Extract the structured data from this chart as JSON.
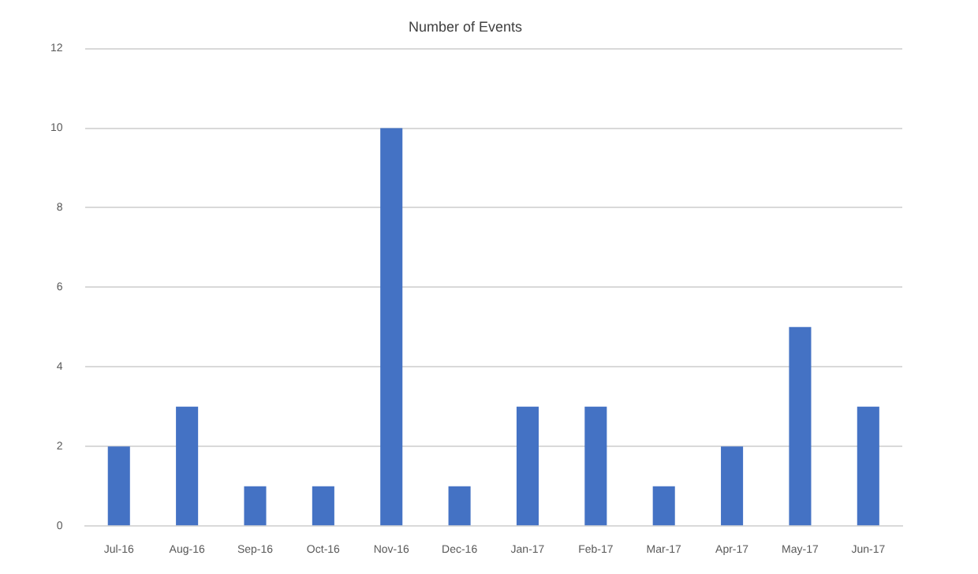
{
  "chart_data": {
    "type": "bar",
    "title": "Number of Events",
    "categories": [
      "Jul-16",
      "Aug-16",
      "Sep-16",
      "Oct-16",
      "Nov-16",
      "Dec-16",
      "Jan-17",
      "Feb-17",
      "Mar-17",
      "Apr-17",
      "May-17",
      "Jun-17"
    ],
    "values": [
      2,
      3,
      1,
      1,
      10,
      1,
      3,
      3,
      1,
      2,
      5,
      3
    ],
    "color": "#4472c4",
    "ylim": [
      0,
      12
    ],
    "yticks": [
      0,
      2,
      4,
      6,
      8,
      10,
      12
    ],
    "grid": "y"
  }
}
